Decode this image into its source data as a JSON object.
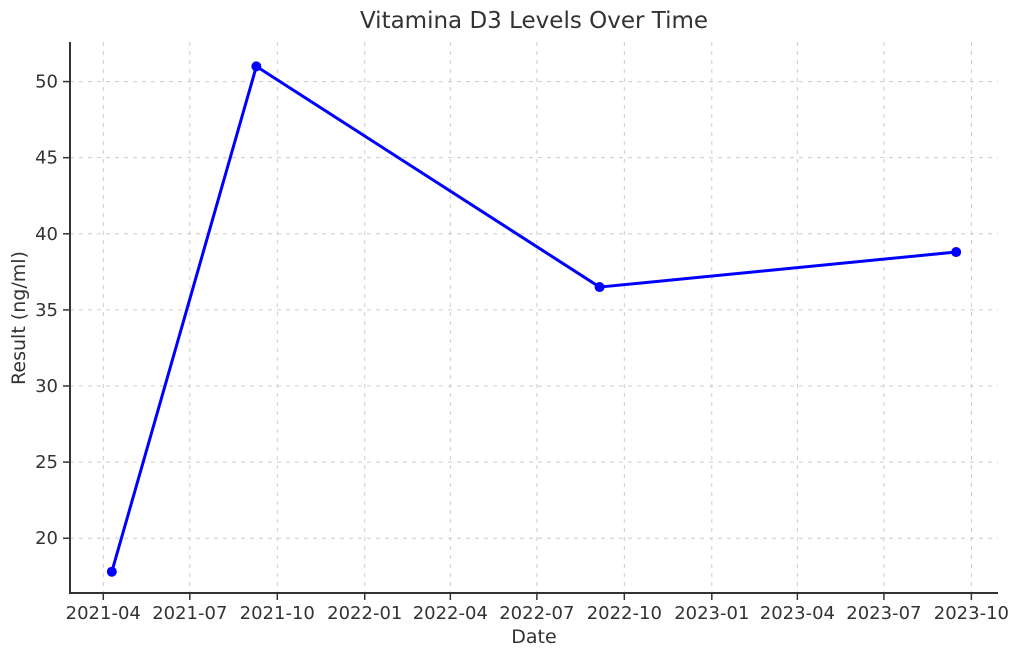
{
  "chart_data": {
    "type": "line",
    "title": "Vitamina D3 Levels Over Time",
    "xlabel": "Date",
    "ylabel": "Result (ng/ml)",
    "series": [
      {
        "color": "#0000ff",
        "marker": "circle",
        "points": [
          {
            "date": "2021-04-10",
            "value": 17.8
          },
          {
            "date": "2021-09-09",
            "value": 51.0
          },
          {
            "date": "2022-09-05",
            "value": 36.5
          },
          {
            "date": "2023-09-15",
            "value": 38.8
          }
        ]
      }
    ],
    "x_ticks": [
      "2021-04",
      "2021-07",
      "2021-10",
      "2022-01",
      "2022-04",
      "2022-07",
      "2022-10",
      "2023-01",
      "2023-04",
      "2023-07",
      "2023-10"
    ],
    "y_ticks": [
      20,
      25,
      30,
      35,
      40,
      45,
      50
    ],
    "xlim": [
      "2021-02-25",
      "2023-10-29"
    ],
    "ylim": [
      16.4,
      52.6
    ],
    "grid": {
      "visible": true,
      "style": "dashed",
      "color": "#cccccc"
    },
    "axis_color": "#333333",
    "tick_label_color": "#333333",
    "background": "#ffffff",
    "legend": null
  }
}
